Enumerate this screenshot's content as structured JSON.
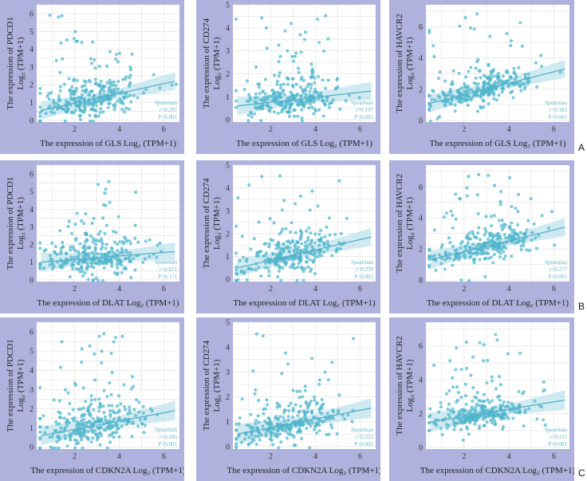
{
  "figure": {
    "row_labels": [
      "A",
      "B",
      "C"
    ],
    "stat_method": "Spearman"
  },
  "colors": {
    "panel_bg": "#aeb2dc",
    "plot_bg": "#ffffff",
    "grid": "#e3e3e3",
    "point": "#4fb6cc",
    "line": "#5aaec8",
    "band": "#bfe3ec"
  },
  "chart_data": [
    {
      "type": "scatter",
      "row": "A",
      "col": 0,
      "xlabel": "The expression of GLS Log₂ (TPM+1)",
      "ylabel1": "The expression of PDCD1",
      "ylabel2": "Log₂ (TPM+1)",
      "xlim": [
        0.3,
        6.7
      ],
      "ylim": [
        -0.1,
        6.5
      ],
      "xticks": [
        2,
        4,
        6
      ],
      "yticks": [
        0,
        1,
        2,
        3,
        4,
        5,
        6
      ],
      "r": "r=0.297",
      "p": "P<0.001",
      "trend": {
        "x0": 0.5,
        "y0": 0.55,
        "x1": 6.5,
        "y1": 2.2
      },
      "spread": 1.1,
      "seed": 11
    },
    {
      "type": "scatter",
      "row": "A",
      "col": 1,
      "xlabel": "The expression of GLS Log₂ (TPM+1)",
      "ylabel1": "The expression of CD274",
      "ylabel2": "Log₂ (TPM+1)",
      "xlim": [
        0.3,
        6.7
      ],
      "ylim": [
        -0.1,
        5.0
      ],
      "xticks": [
        2,
        4,
        6
      ],
      "yticks": [
        0,
        1,
        2,
        3,
        4,
        5
      ],
      "r": "r=0.197",
      "p": "P<0.001",
      "trend": {
        "x0": 0.5,
        "y0": 0.6,
        "x1": 6.5,
        "y1": 1.25
      },
      "spread": 0.7,
      "seed": 23
    },
    {
      "type": "scatter",
      "row": "A",
      "col": 2,
      "xlabel": "The expression of GLS Log₂ (TPM+1)",
      "ylabel1": "The expression of HAVCR2",
      "ylabel2": "Log₂ (TPM+1)",
      "xlim": [
        0.3,
        6.7
      ],
      "ylim": [
        -0.1,
        7.4
      ],
      "xticks": [
        2,
        4,
        6
      ],
      "yticks": [
        0,
        2,
        4,
        6
      ],
      "r": "r=0.383",
      "p": "P<0.001",
      "trend": {
        "x0": 0.5,
        "y0": 1.1,
        "x1": 6.5,
        "y1": 3.3
      },
      "spread": 0.9,
      "seed": 37
    },
    {
      "type": "scatter",
      "row": "B",
      "col": 0,
      "xlabel": "The expression of DLAT Log₂ (TPM+1)",
      "ylabel1": "The expression of PDCD1",
      "ylabel2": "Log₂ (TPM+1)",
      "xlim": [
        0.3,
        6.7
      ],
      "ylim": [
        -0.1,
        6.5
      ],
      "xticks": [
        2,
        4,
        6
      ],
      "yticks": [
        0,
        1,
        2,
        3,
        4,
        5,
        6
      ],
      "r": "r=0.071",
      "p": "P=0.171",
      "trend": {
        "x0": 0.5,
        "y0": 1.0,
        "x1": 6.5,
        "y1": 1.6
      },
      "spread": 1.1,
      "seed": 41
    },
    {
      "type": "scatter",
      "row": "B",
      "col": 1,
      "xlabel": "The expression of DLAT Log₂ (TPM+1)",
      "ylabel1": "The expression of CD274",
      "ylabel2": "Log₂ (TPM+1)",
      "xlim": [
        0.3,
        6.7
      ],
      "ylim": [
        -0.1,
        5.0
      ],
      "xticks": [
        2,
        4,
        6
      ],
      "yticks": [
        0,
        1,
        2,
        3,
        4,
        5
      ],
      "r": "r=0.259",
      "p": "P<0.001",
      "trend": {
        "x0": 0.5,
        "y0": 0.5,
        "x1": 6.5,
        "y1": 1.85
      },
      "spread": 0.75,
      "seed": 53
    },
    {
      "type": "scatter",
      "row": "B",
      "col": 2,
      "xlabel": "The expression of DLAT Log₂ (TPM+1)",
      "ylabel1": "The expression of HAVCR2",
      "ylabel2": "Log₂ (TPM+1)",
      "xlim": [
        0.3,
        6.7
      ],
      "ylim": [
        -0.1,
        7.4
      ],
      "xticks": [
        2,
        4,
        6
      ],
      "yticks": [
        0,
        2,
        4,
        6
      ],
      "r": "r=0.277",
      "p": "P<0.001",
      "trend": {
        "x0": 0.5,
        "y0": 1.3,
        "x1": 6.5,
        "y1": 3.4
      },
      "spread": 0.95,
      "seed": 67
    },
    {
      "type": "scatter",
      "row": "C",
      "col": 0,
      "xlabel": "The expression of CDKN2A Log₂ (TPM+1)",
      "ylabel1": "The expression of PDCD1",
      "ylabel2": "Log₂ (TPM+1)",
      "xlim": [
        0.3,
        6.7
      ],
      "ylim": [
        -0.1,
        6.5
      ],
      "xticks": [
        2,
        4,
        6
      ],
      "yticks": [
        0,
        1,
        2,
        3,
        4,
        5,
        6
      ],
      "r": "r=0.195",
      "p": "P<0.001",
      "trend": {
        "x0": 0.5,
        "y0": 0.6,
        "x1": 6.5,
        "y1": 1.9
      },
      "spread": 1.1,
      "seed": 71
    },
    {
      "type": "scatter",
      "row": "C",
      "col": 1,
      "xlabel": "The expression of CDKN2A Log₂ (TPM+1)",
      "ylabel1": "The expression of CD274",
      "ylabel2": "Log₂ (TPM+1)",
      "xlim": [
        0.3,
        6.7
      ],
      "ylim": [
        -0.1,
        5.0
      ],
      "xticks": [
        2,
        4,
        6
      ],
      "yticks": [
        0,
        1,
        2,
        3,
        4,
        5
      ],
      "r": "r=0.253",
      "p": "P<0.001",
      "trend": {
        "x0": 0.5,
        "y0": 0.5,
        "x1": 6.5,
        "y1": 1.55
      },
      "spread": 0.7,
      "seed": 83
    },
    {
      "type": "scatter",
      "row": "C",
      "col": 2,
      "xlabel": "The expression of CDKN2A Log₂ (TPM+1)",
      "ylabel1": "The expression of HAVCR2",
      "ylabel2": "Log₂ (TPM+1)",
      "xlim": [
        0.3,
        6.7
      ],
      "ylim": [
        -0.1,
        7.4
      ],
      "xticks": [
        2,
        4,
        6
      ],
      "yticks": [
        0,
        2,
        4,
        6
      ],
      "r": "r=0.211",
      "p": "P<0.001",
      "trend": {
        "x0": 0.5,
        "y0": 1.5,
        "x1": 6.5,
        "y1": 2.8
      },
      "spread": 0.9,
      "seed": 97
    }
  ]
}
